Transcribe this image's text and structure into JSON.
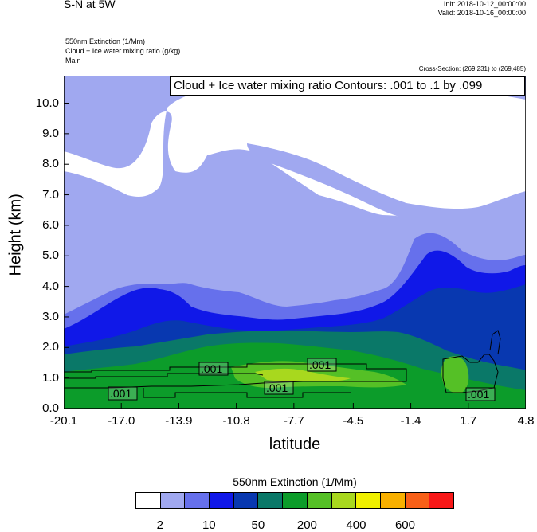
{
  "header": {
    "title": "S-N at 5W",
    "init": "Init: 2018-10-12_00:00:00",
    "valid": "Valid: 2018-10-16_00:00:00",
    "field1": "550nm Extinction   (1/Mm)",
    "field2": "Cloud + Ice water mixing ratio   (g/kg)",
    "field3": "Main",
    "cross_section": "Cross-Section: (269,231) to (269,485)"
  },
  "chart_data": {
    "type": "heatmap",
    "title": "S-N at 5W",
    "xlabel": "latitude",
    "ylabel": "Height (km)",
    "x_ticks": [
      "-20.1",
      "-17.0",
      "-13.9",
      "-10.8",
      "-7.7",
      "-4.5",
      "-1.4",
      "1.7",
      "4.8"
    ],
    "y_ticks": [
      "0.0",
      "1.0",
      "2.0",
      "3.0",
      "4.0",
      "5.0",
      "6.0",
      "7.0",
      "8.0",
      "9.0",
      "10.0"
    ],
    "xlim": [
      -20.1,
      4.8
    ],
    "ylim": [
      0.0,
      10.9
    ],
    "contour_legend": "Cloud + Ice water mixing ratio Contours: .001 to .1 by .099",
    "contour_labels": [
      ".001",
      ".001",
      ".001",
      ".001",
      ".001"
    ],
    "colorbar": {
      "title": "550nm Extinction  (1/Mm)",
      "tick_labels": [
        "2",
        "10",
        "50",
        "200",
        "400",
        "600"
      ],
      "colors": [
        "#ffffff",
        "#a0a8f0",
        "#6670ec",
        "#1018e8",
        "#0838b0",
        "#0a7868",
        "#0c9c2a",
        "#55c026",
        "#a8d81e",
        "#f0f000",
        "#f8b000",
        "#f86018",
        "#f81818"
      ]
    }
  }
}
